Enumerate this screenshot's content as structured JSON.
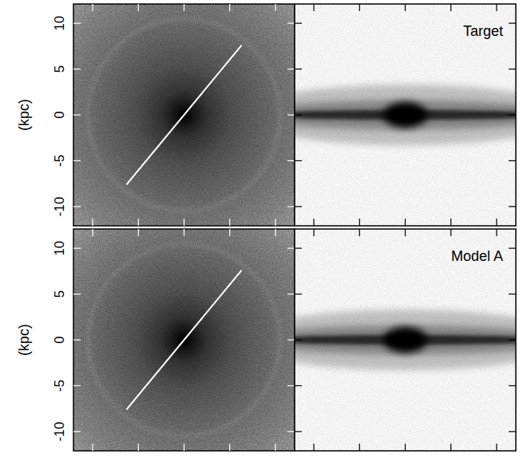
{
  "chart_data": [
    {
      "type": "density_face_on",
      "ylabel": "(kpc)",
      "xlim": [
        -12.1,
        12.1
      ],
      "ylim": [
        -12.1,
        12.1
      ],
      "xticks": [
        -10,
        -5,
        0,
        5,
        10
      ],
      "yticks": [
        -10,
        -5,
        0,
        5,
        10
      ],
      "tick_labels": "y",
      "line": {
        "x": [
          -6.3,
          6.3
        ],
        "y": [
          -7.6,
          7.6
        ]
      }
    },
    {
      "type": "density_edge_on",
      "title": "Target",
      "xlim": [
        -12.1,
        12.1
      ],
      "ylim": [
        -12.1,
        12.1
      ],
      "xticks": [
        -10,
        -5,
        0,
        5,
        10
      ],
      "yticks": [
        -10,
        -5,
        0,
        5,
        10
      ],
      "tick_labels": false
    },
    {
      "type": "density_face_on",
      "ylabel": "(kpc)",
      "xlim": [
        -12.1,
        12.1
      ],
      "ylim": [
        -12.1,
        12.1
      ],
      "xticks": [
        -10,
        -5,
        0,
        5,
        10
      ],
      "yticks": [
        -10,
        -5,
        0,
        5,
        10
      ],
      "tick_labels": "y",
      "line": {
        "x": [
          -6.3,
          6.3
        ],
        "y": [
          -7.6,
          7.6
        ]
      }
    },
    {
      "type": "density_edge_on",
      "title": "Model A",
      "xlim": [
        -12.1,
        12.1
      ],
      "ylim": [
        -12.1,
        12.1
      ],
      "xticks": [
        -10,
        -5,
        0,
        5,
        10
      ],
      "yticks": [
        -10,
        -5,
        0,
        5,
        10
      ],
      "tick_labels": false
    }
  ]
}
